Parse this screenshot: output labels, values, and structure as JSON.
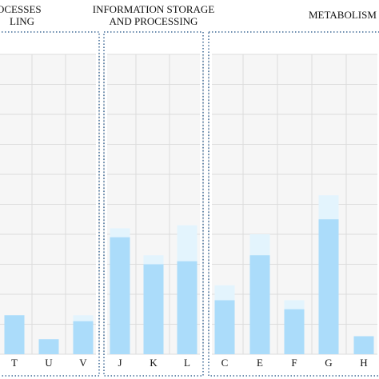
{
  "chart_data": {
    "type": "bar",
    "title": "",
    "xlabel": "",
    "ylabel": "",
    "ylim": [
      0,
      100
    ],
    "grid": true,
    "groups": [
      {
        "name": "OCESSES\nLING",
        "line1": "OCESSES",
        "line2": "LING",
        "categories": [
          "T",
          "U",
          "V"
        ]
      },
      {
        "name": "INFORMATION STORAGE AND PROCESSING",
        "line1": "INFORMATION STORAGE",
        "line2": "AND PROCESSING",
        "categories": [
          "J",
          "K",
          "L"
        ]
      },
      {
        "name": "METABOLISM",
        "line1": "METABOLISM",
        "line2": "",
        "categories": [
          "C",
          "E",
          "F",
          "G",
          "H"
        ]
      }
    ],
    "categories": [
      "T",
      "U",
      "V",
      "J",
      "K",
      "L",
      "C",
      "E",
      "F",
      "G",
      "H"
    ],
    "series": [
      {
        "values": [
          13,
          5,
          11,
          39,
          30,
          31,
          18,
          33,
          15,
          45,
          6
        ]
      },
      {
        "values": [
          13,
          5,
          13,
          42,
          33,
          43,
          23,
          40,
          18,
          53,
          6
        ]
      }
    ],
    "colors": {
      "bar": "#abdcfa",
      "bar_light": "#e3f4fd",
      "grid": "#dcdcdc",
      "panel_border": "#3f6a96",
      "plot_bg": "#f6f6f6"
    }
  }
}
